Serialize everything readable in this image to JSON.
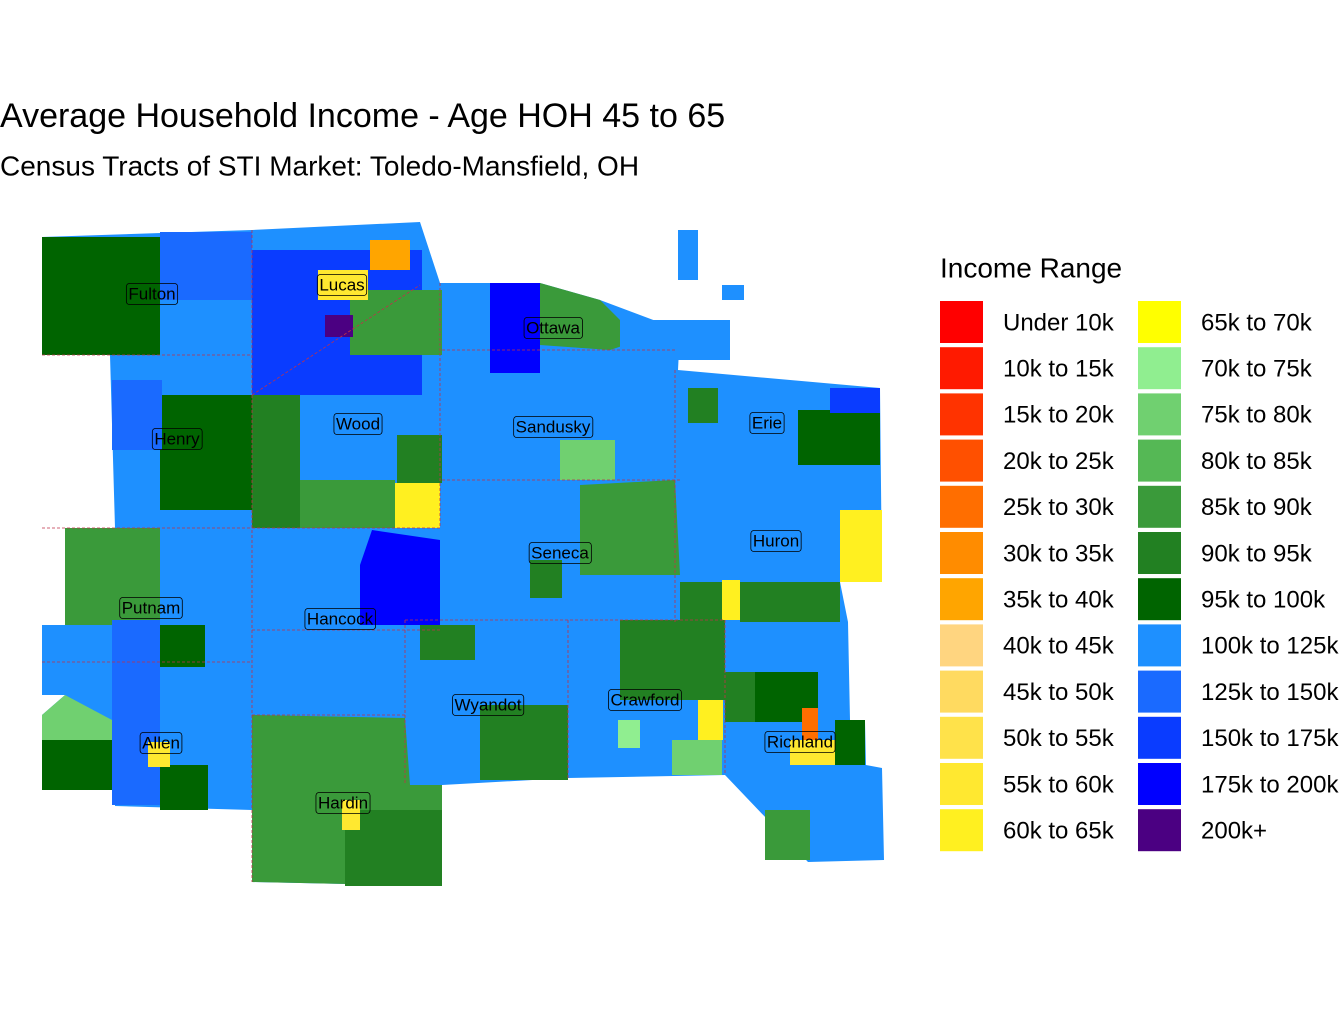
{
  "title": "Average Household Income - Age HOH 45 to 65",
  "subtitle": "Census Tracts of STI Market: Toledo-Mansfield, OH",
  "legend": {
    "title": "Income Range",
    "items": [
      {
        "label": "Under 10k",
        "color": "#FF0000"
      },
      {
        "label": "10k to 15k",
        "color": "#FF1A00"
      },
      {
        "label": "15k to 20k",
        "color": "#FF3300"
      },
      {
        "label": "20k to 25k",
        "color": "#FF5000"
      },
      {
        "label": "25k to 30k",
        "color": "#FF6E00"
      },
      {
        "label": "30k to 35k",
        "color": "#FF8C00"
      },
      {
        "label": "35k to 40k",
        "color": "#FFA500"
      },
      {
        "label": "40k to 45k",
        "color": "#FFD580"
      },
      {
        "label": "45k to 50k",
        "color": "#FFDA60"
      },
      {
        "label": "50k to 55k",
        "color": "#FFE24A"
      },
      {
        "label": "55k to 60k",
        "color": "#FFE830"
      },
      {
        "label": "60k to 65k",
        "color": "#FFF020"
      },
      {
        "label": "65k to 70k",
        "color": "#FFFF00"
      },
      {
        "label": "70k to 75k",
        "color": "#90EE90"
      },
      {
        "label": "75k to 80k",
        "color": "#70D070"
      },
      {
        "label": "80k to 85k",
        "color": "#55B855"
      },
      {
        "label": "85k to 90k",
        "color": "#3A9A3A"
      },
      {
        "label": "90k to 95k",
        "color": "#228022"
      },
      {
        "label": "95k to 100k",
        "color": "#006400"
      },
      {
        "label": "100k to 125k",
        "color": "#1E90FF"
      },
      {
        "label": "125k to 150k",
        "color": "#1A6AFF"
      },
      {
        "label": "150k to 175k",
        "color": "#0A3CFF"
      },
      {
        "label": "175k to 200k",
        "color": "#0000FF"
      },
      {
        "label": "200k+",
        "color": "#4B0082"
      }
    ]
  },
  "counties": [
    {
      "name": "Fulton"
    },
    {
      "name": "Lucas"
    },
    {
      "name": "Ottawa"
    },
    {
      "name": "Henry"
    },
    {
      "name": "Wood"
    },
    {
      "name": "Sandusky"
    },
    {
      "name": "Erie"
    },
    {
      "name": "Seneca"
    },
    {
      "name": "Huron"
    },
    {
      "name": "Putnam"
    },
    {
      "name": "Hancock"
    },
    {
      "name": "Wyandot"
    },
    {
      "name": "Crawford"
    },
    {
      "name": "Allen"
    },
    {
      "name": "Richland"
    },
    {
      "name": "Hardin"
    }
  ]
}
